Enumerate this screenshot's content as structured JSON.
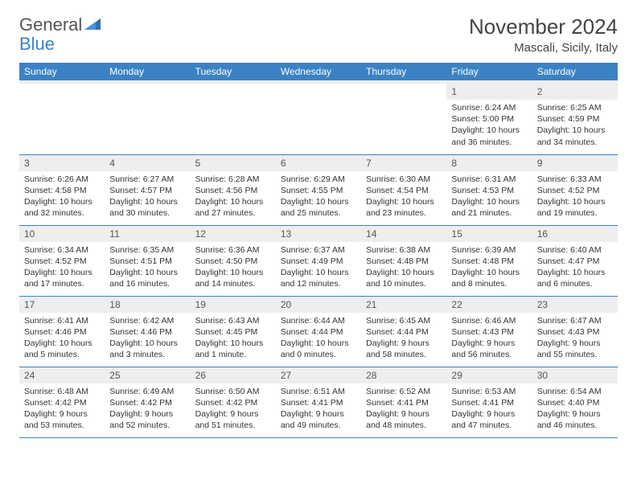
{
  "brand": {
    "name1": "General",
    "name2": "Blue"
  },
  "title": "November 2024",
  "location": "Mascali, Sicily, Italy",
  "colors": {
    "header_bg": "#3b82c4",
    "header_fg": "#ffffff",
    "daynum_bg": "#eceeef",
    "rule": "#3b82c4",
    "logo_gray": "#555555",
    "logo_blue": "#3b82c4"
  },
  "weekdays": [
    "Sunday",
    "Monday",
    "Tuesday",
    "Wednesday",
    "Thursday",
    "Friday",
    "Saturday"
  ],
  "weeks": [
    [
      null,
      null,
      null,
      null,
      null,
      {
        "d": "1",
        "sr": "Sunrise: 6:24 AM",
        "ss": "Sunset: 5:00 PM",
        "dl": "Daylight: 10 hours and 36 minutes."
      },
      {
        "d": "2",
        "sr": "Sunrise: 6:25 AM",
        "ss": "Sunset: 4:59 PM",
        "dl": "Daylight: 10 hours and 34 minutes."
      }
    ],
    [
      {
        "d": "3",
        "sr": "Sunrise: 6:26 AM",
        "ss": "Sunset: 4:58 PM",
        "dl": "Daylight: 10 hours and 32 minutes."
      },
      {
        "d": "4",
        "sr": "Sunrise: 6:27 AM",
        "ss": "Sunset: 4:57 PM",
        "dl": "Daylight: 10 hours and 30 minutes."
      },
      {
        "d": "5",
        "sr": "Sunrise: 6:28 AM",
        "ss": "Sunset: 4:56 PM",
        "dl": "Daylight: 10 hours and 27 minutes."
      },
      {
        "d": "6",
        "sr": "Sunrise: 6:29 AM",
        "ss": "Sunset: 4:55 PM",
        "dl": "Daylight: 10 hours and 25 minutes."
      },
      {
        "d": "7",
        "sr": "Sunrise: 6:30 AM",
        "ss": "Sunset: 4:54 PM",
        "dl": "Daylight: 10 hours and 23 minutes."
      },
      {
        "d": "8",
        "sr": "Sunrise: 6:31 AM",
        "ss": "Sunset: 4:53 PM",
        "dl": "Daylight: 10 hours and 21 minutes."
      },
      {
        "d": "9",
        "sr": "Sunrise: 6:33 AM",
        "ss": "Sunset: 4:52 PM",
        "dl": "Daylight: 10 hours and 19 minutes."
      }
    ],
    [
      {
        "d": "10",
        "sr": "Sunrise: 6:34 AM",
        "ss": "Sunset: 4:52 PM",
        "dl": "Daylight: 10 hours and 17 minutes."
      },
      {
        "d": "11",
        "sr": "Sunrise: 6:35 AM",
        "ss": "Sunset: 4:51 PM",
        "dl": "Daylight: 10 hours and 16 minutes."
      },
      {
        "d": "12",
        "sr": "Sunrise: 6:36 AM",
        "ss": "Sunset: 4:50 PM",
        "dl": "Daylight: 10 hours and 14 minutes."
      },
      {
        "d": "13",
        "sr": "Sunrise: 6:37 AM",
        "ss": "Sunset: 4:49 PM",
        "dl": "Daylight: 10 hours and 12 minutes."
      },
      {
        "d": "14",
        "sr": "Sunrise: 6:38 AM",
        "ss": "Sunset: 4:48 PM",
        "dl": "Daylight: 10 hours and 10 minutes."
      },
      {
        "d": "15",
        "sr": "Sunrise: 6:39 AM",
        "ss": "Sunset: 4:48 PM",
        "dl": "Daylight: 10 hours and 8 minutes."
      },
      {
        "d": "16",
        "sr": "Sunrise: 6:40 AM",
        "ss": "Sunset: 4:47 PM",
        "dl": "Daylight: 10 hours and 6 minutes."
      }
    ],
    [
      {
        "d": "17",
        "sr": "Sunrise: 6:41 AM",
        "ss": "Sunset: 4:46 PM",
        "dl": "Daylight: 10 hours and 5 minutes."
      },
      {
        "d": "18",
        "sr": "Sunrise: 6:42 AM",
        "ss": "Sunset: 4:46 PM",
        "dl": "Daylight: 10 hours and 3 minutes."
      },
      {
        "d": "19",
        "sr": "Sunrise: 6:43 AM",
        "ss": "Sunset: 4:45 PM",
        "dl": "Daylight: 10 hours and 1 minute."
      },
      {
        "d": "20",
        "sr": "Sunrise: 6:44 AM",
        "ss": "Sunset: 4:44 PM",
        "dl": "Daylight: 10 hours and 0 minutes."
      },
      {
        "d": "21",
        "sr": "Sunrise: 6:45 AM",
        "ss": "Sunset: 4:44 PM",
        "dl": "Daylight: 9 hours and 58 minutes."
      },
      {
        "d": "22",
        "sr": "Sunrise: 6:46 AM",
        "ss": "Sunset: 4:43 PM",
        "dl": "Daylight: 9 hours and 56 minutes."
      },
      {
        "d": "23",
        "sr": "Sunrise: 6:47 AM",
        "ss": "Sunset: 4:43 PM",
        "dl": "Daylight: 9 hours and 55 minutes."
      }
    ],
    [
      {
        "d": "24",
        "sr": "Sunrise: 6:48 AM",
        "ss": "Sunset: 4:42 PM",
        "dl": "Daylight: 9 hours and 53 minutes."
      },
      {
        "d": "25",
        "sr": "Sunrise: 6:49 AM",
        "ss": "Sunset: 4:42 PM",
        "dl": "Daylight: 9 hours and 52 minutes."
      },
      {
        "d": "26",
        "sr": "Sunrise: 6:50 AM",
        "ss": "Sunset: 4:42 PM",
        "dl": "Daylight: 9 hours and 51 minutes."
      },
      {
        "d": "27",
        "sr": "Sunrise: 6:51 AM",
        "ss": "Sunset: 4:41 PM",
        "dl": "Daylight: 9 hours and 49 minutes."
      },
      {
        "d": "28",
        "sr": "Sunrise: 6:52 AM",
        "ss": "Sunset: 4:41 PM",
        "dl": "Daylight: 9 hours and 48 minutes."
      },
      {
        "d": "29",
        "sr": "Sunrise: 6:53 AM",
        "ss": "Sunset: 4:41 PM",
        "dl": "Daylight: 9 hours and 47 minutes."
      },
      {
        "d": "30",
        "sr": "Sunrise: 6:54 AM",
        "ss": "Sunset: 4:40 PM",
        "dl": "Daylight: 9 hours and 46 minutes."
      }
    ]
  ]
}
